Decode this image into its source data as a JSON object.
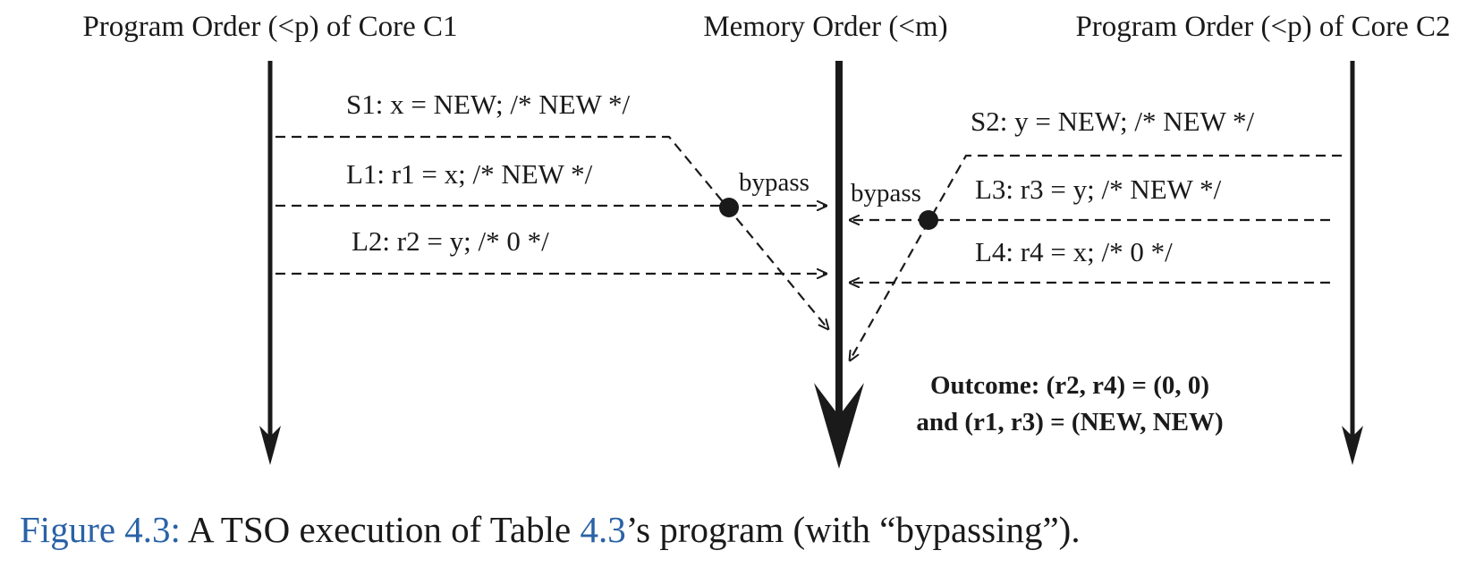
{
  "headers": {
    "core_c1": "Program Order (<p) of Core C1",
    "memory": "Memory Order (<m)",
    "core_c2": "Program Order (<p) of Core C2"
  },
  "ops": {
    "s1": "S1: x = NEW; /* NEW */",
    "l1": "L1: r1 = x; /* NEW */",
    "l2": "L2: r2 = y; /* 0 */",
    "s2": "S2: y = NEW; /* NEW */",
    "l3": "L3: r3 = y; /* NEW */",
    "l4": "L4: r4 = x; /* 0 */"
  },
  "bypass_label": "bypass",
  "outcome": {
    "line1": "Outcome: (r2, r4) = (0, 0)",
    "line2": "and (r1, r3) = (NEW, NEW)"
  },
  "caption": {
    "ref": "Figure 4.3:",
    "text_before": " A TSO execution of Table ",
    "table_ref": "4.3",
    "text_after": "’s program (with “bypassing”)."
  }
}
